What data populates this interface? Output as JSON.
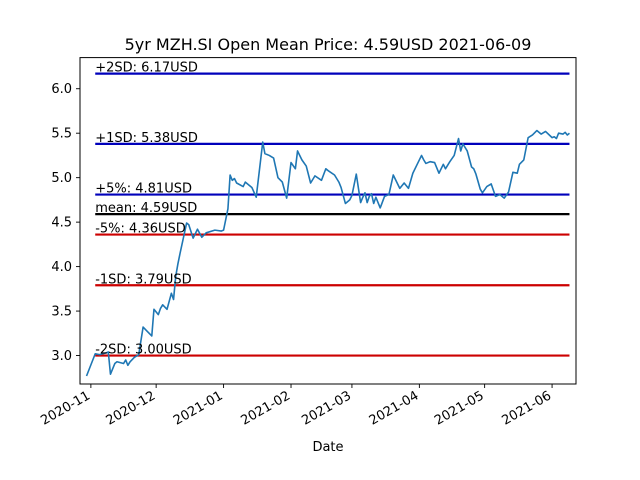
{
  "chart_data": {
    "type": "line",
    "title": "5yr MZH.SI Open Mean Price: 4.59USD 2021-06-09",
    "xlabel": "Date",
    "ylabel": "",
    "xlim": [
      "2020-10-27",
      "2021-06-12"
    ],
    "ylim": [
      2.68,
      6.35
    ],
    "x_ticks": [
      "2020-11-01",
      "2020-12-01",
      "2021-01-01",
      "2021-02-01",
      "2021-03-01",
      "2021-04-01",
      "2021-05-01",
      "2021-06-01"
    ],
    "x_tick_labels": [
      "2020-11",
      "2020-12",
      "2021-01",
      "2021-02",
      "2021-03",
      "2021-04",
      "2021-05",
      "2021-06"
    ],
    "y_ticks": [
      3.0,
      3.5,
      4.0,
      4.5,
      5.0,
      5.5,
      6.0
    ],
    "y_tick_labels": [
      "3.0",
      "3.5",
      "4.0",
      "4.5",
      "5.0",
      "5.5",
      "6.0"
    ],
    "grid": false,
    "legend": "none",
    "reference_lines": [
      {
        "label": "+2SD: 6.17USD",
        "value": 6.17,
        "color": "#0000bb"
      },
      {
        "label": "+1SD: 5.38USD",
        "value": 5.38,
        "color": "#0000bb"
      },
      {
        "label": "+5%: 4.81USD",
        "value": 4.81,
        "color": "#0000bb"
      },
      {
        "label": "mean: 4.59USD",
        "value": 4.59,
        "color": "#000000"
      },
      {
        "label": "-5%: 4.36USD",
        "value": 4.36,
        "color": "#cc0000"
      },
      {
        "label": "-1SD: 3.79USD",
        "value": 3.79,
        "color": "#cc0000"
      },
      {
        "label": "-2SD: 3.00USD",
        "value": 3.0,
        "color": "#cc0000"
      }
    ],
    "reference_line_span": [
      "2020-11-03",
      "2021-06-09"
    ],
    "series": [
      {
        "color": "#1f77b4",
        "x": [
          "2020-10-30",
          "2020-11-03",
          "2020-11-05",
          "2020-11-08",
          "2020-11-09",
          "2020-11-10",
          "2020-11-12",
          "2020-11-13",
          "2020-11-16",
          "2020-11-17",
          "2020-11-18",
          "2020-11-19",
          "2020-11-21",
          "2020-11-23",
          "2020-11-25",
          "2020-11-27",
          "2020-11-29",
          "2020-11-30",
          "2020-12-02",
          "2020-12-03",
          "2020-12-04",
          "2020-12-06",
          "2020-12-08",
          "2020-12-09",
          "2020-12-10",
          "2020-12-11",
          "2020-12-12",
          "2020-12-15",
          "2020-12-16",
          "2020-12-18",
          "2020-12-20",
          "2020-12-22",
          "2020-12-24",
          "2020-12-28",
          "2020-12-31",
          "2021-01-01",
          "2021-01-03",
          "2021-01-04",
          "2021-01-05",
          "2021-01-06",
          "2021-01-07",
          "2021-01-10",
          "2021-01-11",
          "2021-01-14",
          "2021-01-16",
          "2021-01-19",
          "2021-01-20",
          "2021-01-22",
          "2021-01-24",
          "2021-01-26",
          "2021-01-28",
          "2021-01-30",
          "2021-02-01",
          "2021-02-03",
          "2021-02-04",
          "2021-02-06",
          "2021-02-08",
          "2021-02-10",
          "2021-02-12",
          "2021-02-15",
          "2021-02-17",
          "2021-02-18",
          "2021-02-21",
          "2021-02-23",
          "2021-02-24",
          "2021-02-26",
          "2021-02-28",
          "2021-03-01",
          "2021-03-03",
          "2021-03-05",
          "2021-03-06",
          "2021-03-07",
          "2021-03-08",
          "2021-03-09",
          "2021-03-10",
          "2021-03-11",
          "2021-03-12",
          "2021-03-14",
          "2021-03-16",
          "2021-03-18",
          "2021-03-20",
          "2021-03-23",
          "2021-03-25",
          "2021-03-27",
          "2021-03-29",
          "2021-03-31",
          "2021-04-02",
          "2021-04-03",
          "2021-04-04",
          "2021-04-06",
          "2021-04-08",
          "2021-04-10",
          "2021-04-12",
          "2021-04-13",
          "2021-04-15",
          "2021-04-17",
          "2021-04-19",
          "2021-04-20",
          "2021-04-21",
          "2021-04-23",
          "2021-04-25",
          "2021-04-26",
          "2021-04-27",
          "2021-04-29",
          "2021-04-30",
          "2021-05-02",
          "2021-05-04",
          "2021-05-06",
          "2021-05-08",
          "2021-05-10",
          "2021-05-12",
          "2021-05-14",
          "2021-05-16",
          "2021-05-17",
          "2021-05-19",
          "2021-05-21",
          "2021-05-23",
          "2021-05-25",
          "2021-05-27",
          "2021-05-29",
          "2021-06-01",
          "2021-06-02",
          "2021-06-03",
          "2021-06-04",
          "2021-06-06",
          "2021-06-07",
          "2021-06-08",
          "2021-06-09"
        ],
        "values": [
          2.77,
          3.02,
          3.01,
          3.03,
          3.04,
          2.79,
          2.91,
          2.93,
          2.91,
          2.95,
          2.89,
          2.93,
          2.98,
          3.01,
          3.32,
          3.27,
          3.22,
          3.52,
          3.46,
          3.53,
          3.57,
          3.52,
          3.7,
          3.63,
          3.89,
          4.03,
          4.15,
          4.49,
          4.47,
          4.32,
          4.42,
          4.33,
          4.38,
          4.41,
          4.4,
          4.41,
          4.65,
          5.03,
          4.97,
          4.99,
          4.94,
          4.9,
          4.95,
          4.89,
          4.78,
          5.4,
          5.27,
          5.25,
          5.22,
          5.0,
          4.95,
          4.77,
          5.17,
          5.1,
          5.3,
          5.2,
          5.13,
          4.94,
          5.02,
          4.97,
          5.1,
          5.08,
          5.03,
          4.95,
          4.89,
          4.71,
          4.75,
          4.8,
          5.04,
          4.72,
          4.78,
          4.83,
          4.72,
          4.79,
          4.82,
          4.71,
          4.78,
          4.66,
          4.79,
          4.81,
          5.03,
          4.88,
          4.94,
          4.88,
          5.05,
          5.15,
          5.25,
          5.2,
          5.16,
          5.18,
          5.17,
          5.05,
          5.15,
          5.1,
          5.18,
          5.25,
          5.44,
          5.3,
          5.38,
          5.3,
          5.12,
          5.1,
          5.04,
          4.87,
          4.83,
          4.9,
          4.93,
          4.79,
          4.81,
          4.77,
          4.84,
          5.06,
          5.05,
          5.15,
          5.2,
          5.45,
          5.48,
          5.53,
          5.49,
          5.52,
          5.45,
          5.46,
          5.44,
          5.5,
          5.49,
          5.51,
          5.48,
          5.5
        ]
      }
    ]
  }
}
